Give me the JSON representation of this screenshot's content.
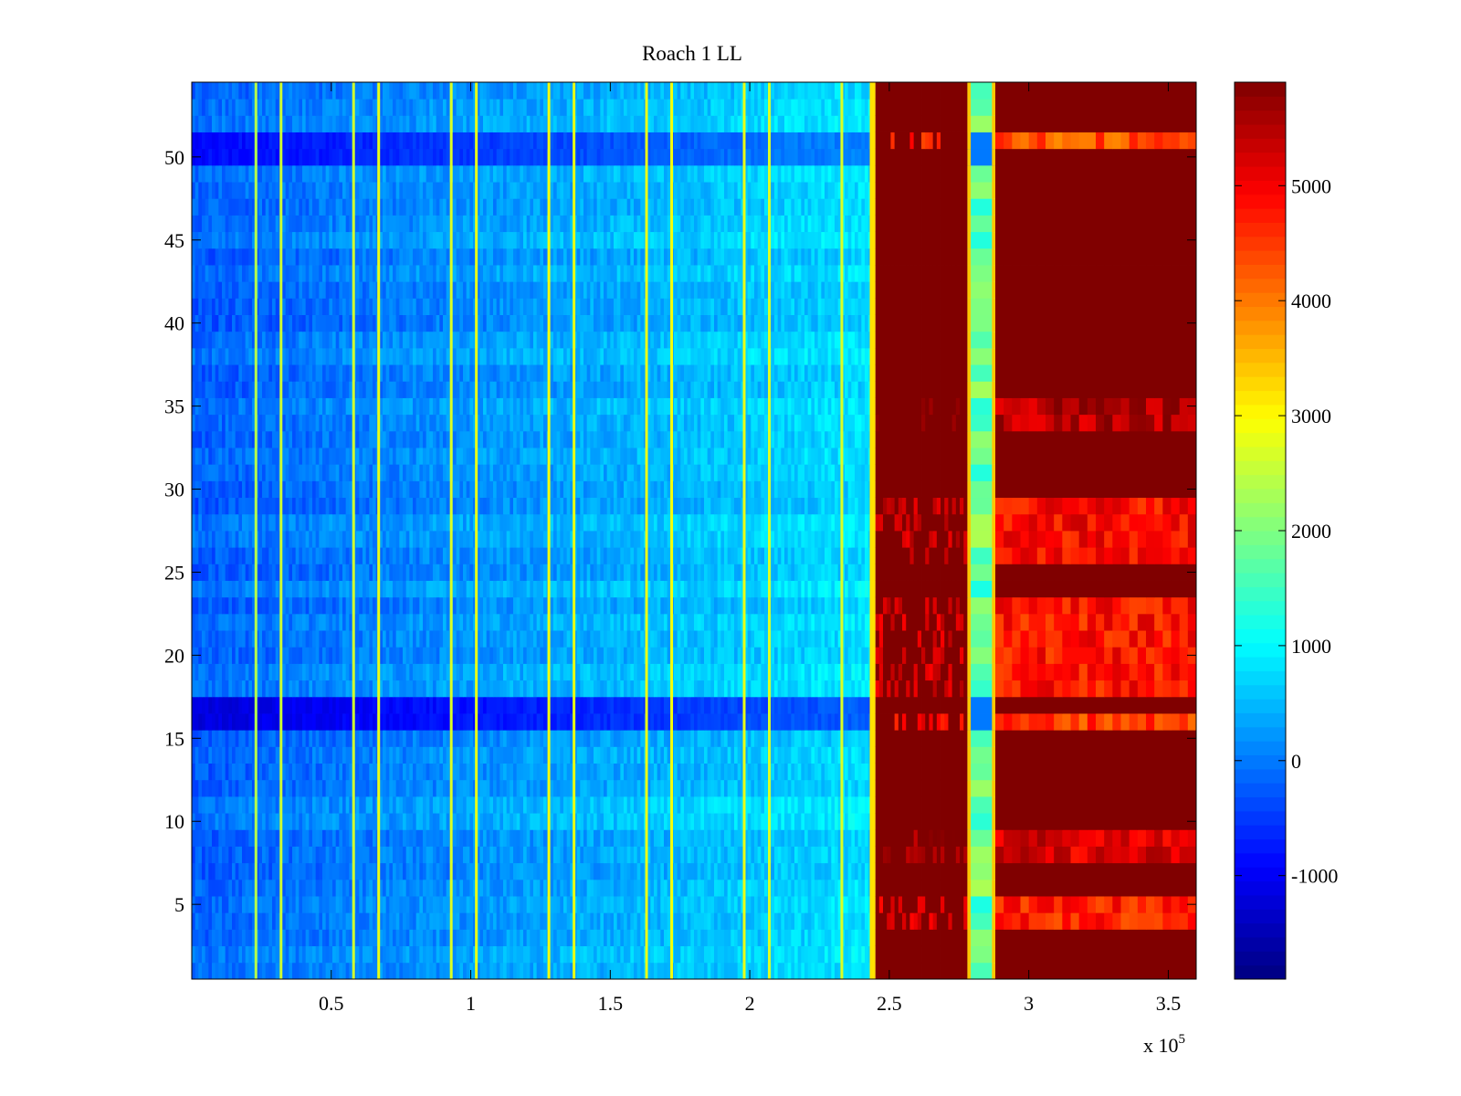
{
  "chart_data": {
    "type": "heatmap",
    "title": "Roach 1 LL",
    "xlabel": "",
    "ylabel": "",
    "x_exponent_label": "x 10",
    "x_exponent_power": "5",
    "xlim": [
      0,
      3.6
    ],
    "ylim": [
      0.5,
      54.5
    ],
    "x_scale_multiplier": 100000,
    "xticks": [
      {
        "value": 0.5,
        "label": "0.5"
      },
      {
        "value": 1,
        "label": "1"
      },
      {
        "value": 1.5,
        "label": "1.5"
      },
      {
        "value": 2,
        "label": "2"
      },
      {
        "value": 2.5,
        "label": "2.5"
      },
      {
        "value": 3,
        "label": "3"
      },
      {
        "value": 3.5,
        "label": "3.5"
      }
    ],
    "yticks": [
      {
        "value": 5,
        "label": "5"
      },
      {
        "value": 10,
        "label": "10"
      },
      {
        "value": 15,
        "label": "15"
      },
      {
        "value": 20,
        "label": "20"
      },
      {
        "value": 25,
        "label": "25"
      },
      {
        "value": 30,
        "label": "30"
      },
      {
        "value": 35,
        "label": "35"
      },
      {
        "value": 40,
        "label": "40"
      },
      {
        "value": 45,
        "label": "45"
      },
      {
        "value": 50,
        "label": "50"
      }
    ],
    "colorbar": {
      "colormap": "jet",
      "clim": [
        -1900,
        5900
      ],
      "ticks": [
        {
          "value": -1000,
          "label": "-1000"
        },
        {
          "value": 0,
          "label": "0"
        },
        {
          "value": 1000,
          "label": "1000"
        },
        {
          "value": 2000,
          "label": "2000"
        },
        {
          "value": 3000,
          "label": "3000"
        },
        {
          "value": 4000,
          "label": "4000"
        },
        {
          "value": 5000,
          "label": "5000"
        }
      ]
    },
    "rows": 54,
    "background_level": {
      "x_start": 0,
      "x_end": 2.45,
      "value_start": -200,
      "value_end": 800
    },
    "saturated_regions": [
      {
        "x_start": 2.45,
        "x_end": 2.78,
        "value": 5900
      },
      {
        "x_start": 2.88,
        "x_end": 3.6,
        "value": 5900
      }
    ],
    "mid_band": {
      "x_start": 2.78,
      "x_end": 2.88,
      "value": 1800
    },
    "edge_transition": {
      "x": 2.44,
      "value": 3200
    },
    "vertical_lines": [
      {
        "x": 0.23,
        "value": 2400
      },
      {
        "x": 0.32,
        "value": 2600
      },
      {
        "x": 0.58,
        "value": 2600
      },
      {
        "x": 0.67,
        "value": 2800
      },
      {
        "x": 0.93,
        "value": 2700
      },
      {
        "x": 1.02,
        "value": 2800
      },
      {
        "x": 1.28,
        "value": 2900
      },
      {
        "x": 1.37,
        "value": 2800
      },
      {
        "x": 1.63,
        "value": 2800
      },
      {
        "x": 1.72,
        "value": 2900
      },
      {
        "x": 1.98,
        "value": 2800
      },
      {
        "x": 2.07,
        "value": 2700
      },
      {
        "x": 2.33,
        "value": 2700
      }
    ],
    "dark_rows": [
      {
        "y_start": 15.5,
        "y_end": 17.5,
        "value": -1200
      },
      {
        "y_start": 49.5,
        "y_end": 51.5,
        "value": -900
      }
    ],
    "reduced_rows": [
      {
        "y_start": 3.5,
        "y_end": 5.5,
        "value": 4700
      },
      {
        "y_start": 7.5,
        "y_end": 9.5,
        "value": 5200
      },
      {
        "y_start": 15.5,
        "y_end": 16.5,
        "value": 4500
      },
      {
        "y_start": 17.5,
        "y_end": 23.5,
        "value": 4800
      },
      {
        "y_start": 25.5,
        "y_end": 29.5,
        "value": 4900
      },
      {
        "y_start": 33.5,
        "y_end": 35.5,
        "value": 5500
      },
      {
        "y_start": 50.5,
        "y_end": 51.5,
        "value": 4300
      }
    ]
  }
}
